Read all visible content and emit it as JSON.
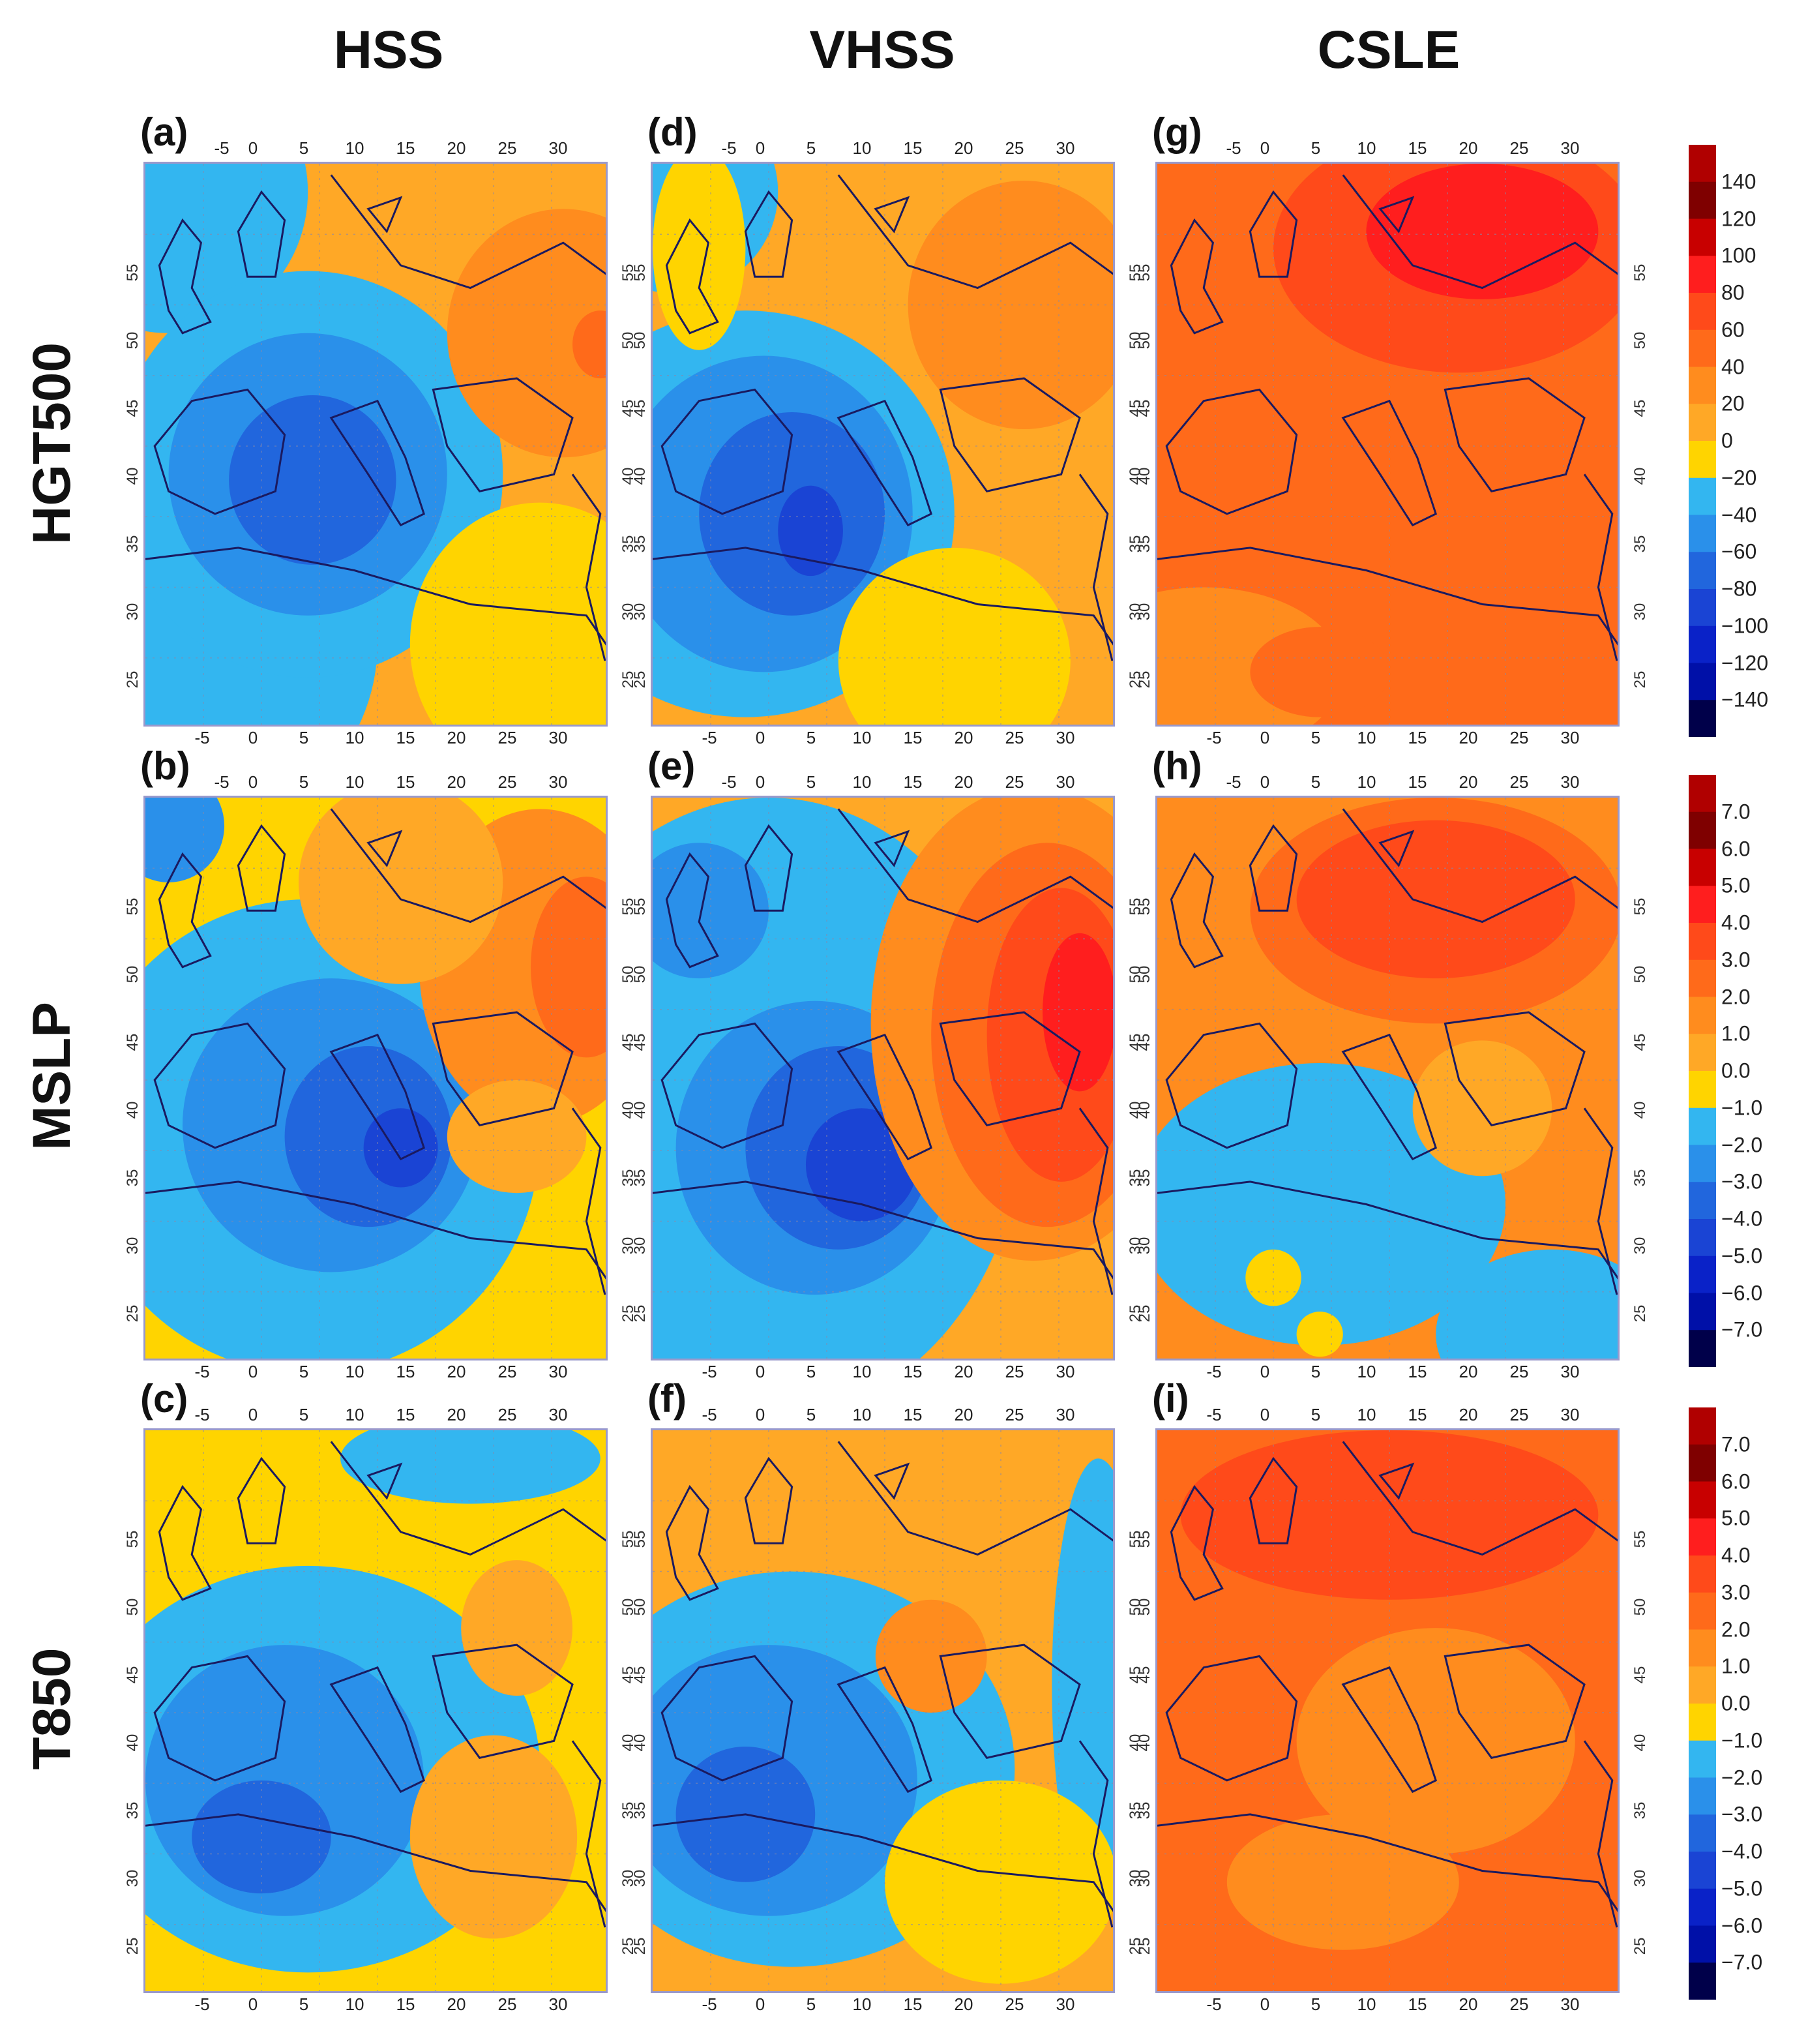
{
  "columns": [
    "HSS",
    "VHSS",
    "CSLE"
  ],
  "rows": [
    "HGT500",
    "MSLP",
    "T850"
  ],
  "panel_labels": [
    "(a)",
    "(b)",
    "(c)",
    "(d)",
    "(e)",
    "(f)",
    "(g)",
    "(h)",
    "(i)"
  ],
  "lon_ticks": [
    "-5",
    "0",
    "5",
    "10",
    "15",
    "20",
    "25",
    "30"
  ],
  "lat_ticks": [
    "55",
    "50",
    "45",
    "40",
    "35",
    "30",
    "25"
  ],
  "colorbars": [
    {
      "name": "hgt500",
      "labels": [
        "140",
        "120",
        "100",
        "80",
        "60",
        "40",
        "20",
        "0",
        "−20",
        "−40",
        "−60",
        "−80",
        "−100",
        "−120",
        "−140"
      ]
    },
    {
      "name": "mslp",
      "labels": [
        "7.0",
        "6.0",
        "5.0",
        "4.0",
        "3.0",
        "2.0",
        "1.0",
        "0.0",
        "−1.0",
        "−2.0",
        "−3.0",
        "−4.0",
        "−5.0",
        "−6.0",
        "−7.0"
      ]
    },
    {
      "name": "t850",
      "labels": [
        "7.0",
        "6.0",
        "5.0",
        "4.0",
        "3.0",
        "2.0",
        "1.0",
        "0.0",
        "−1.0",
        "−2.0",
        "−3.0",
        "−4.0",
        "−5.0",
        "−6.0",
        "−7.0"
      ]
    }
  ],
  "colors": {
    "levels": [
      "#7f0000",
      "#c80000",
      "#ff1e1e",
      "#ff4a1a",
      "#ff6a1a",
      "#ff8c1e",
      "#ffa826",
      "#ffd400",
      "#33b6f0",
      "#2a90ea",
      "#2166dd",
      "#1a44d4",
      "#0a22c8",
      "#0010a8",
      "#000070"
    ],
    "land_outline": "#1a1a60"
  }
}
